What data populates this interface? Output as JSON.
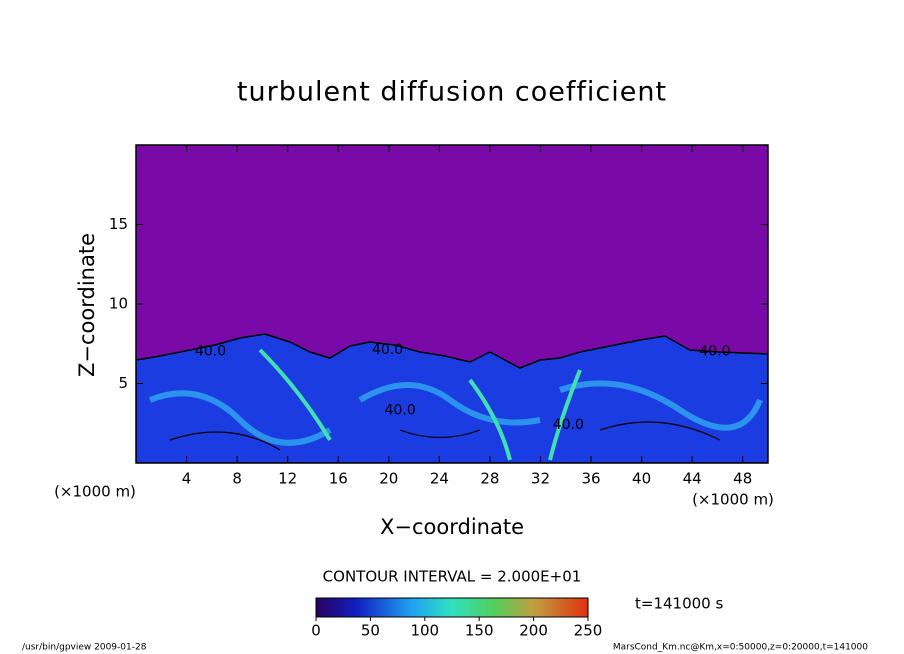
{
  "chart_data": {
    "type": "contour",
    "title": "turbulent diffusion coefficient",
    "xlabel": "X−coordinate",
    "ylabel": "Z−coordinate",
    "x_unit_label": "(×1000 m)",
    "y_unit_label": "(×1000 m)",
    "xlim": [
      0,
      50
    ],
    "xticks": [
      4,
      8,
      12,
      16,
      20,
      24,
      28,
      32,
      36,
      40,
      44,
      48
    ],
    "ylim": [
      0,
      20
    ],
    "yticks": [
      5,
      10,
      15
    ],
    "contour_labels": [
      {
        "x": 5.9,
        "z": 7.0,
        "level": 40,
        "label": "40.0"
      },
      {
        "x": 19.9,
        "z": 7.1,
        "level": 40,
        "label": "40.0"
      },
      {
        "x": 20.9,
        "z": 3.3,
        "level": 40,
        "label": "40.0"
      },
      {
        "x": 34.2,
        "z": 2.4,
        "level": 40,
        "label": "40.0"
      },
      {
        "x": 45.8,
        "z": 7.0,
        "level": 40,
        "label": "40.0"
      }
    ],
    "contour_interval": "CONTOUR INTERVAL = 2.000E+01",
    "time_label": "t=141000 s",
    "colorbar_lim": [
      0,
      250
    ],
    "colorbar_ticks": [
      0,
      50,
      100,
      150,
      200,
      250
    ],
    "footer_left": "/usr/bin/gpview  2009-01-28",
    "footer_right": "MarsCond_Km.nc@Km,x=0:50000,z=0:20000,t=141000"
  }
}
